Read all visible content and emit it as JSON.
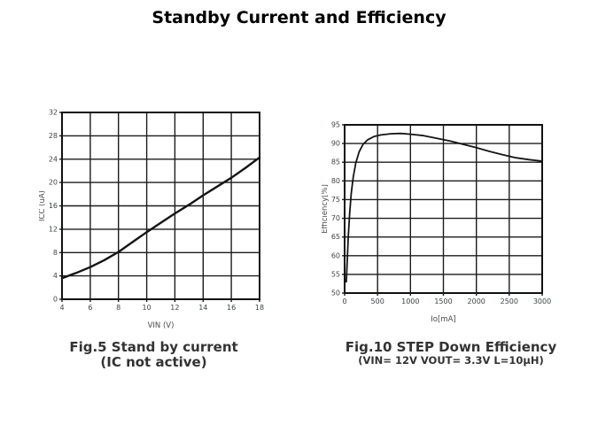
{
  "page_title": "Standby Current and Efficiency",
  "figures": [
    {
      "caption_line1": "Fig.5 Stand by current",
      "caption_line2": "(IC not active)"
    },
    {
      "caption_line1": "Fig.10 STEP Down Efficiency",
      "caption_line2": "(VIN= 12V VOUT= 3.3V L=10µH)"
    }
  ],
  "chart_data": [
    {
      "type": "line",
      "title": "Fig.5 Stand by current (IC not active)",
      "xlabel": "VIN (V)",
      "ylabel": "ICC (uA)",
      "xlim": [
        4,
        18
      ],
      "ylim": [
        0,
        32
      ],
      "x_ticks": [
        4,
        6,
        8,
        10,
        12,
        14,
        16,
        18
      ],
      "y_ticks": [
        0,
        4,
        8,
        12,
        16,
        20,
        24,
        28,
        32
      ],
      "grid": true,
      "legend": "none",
      "series": [
        {
          "name": "ICC standby current",
          "points": [
            [
              4,
              3.6
            ],
            [
              5,
              4.5
            ],
            [
              6,
              5.5
            ],
            [
              7,
              6.7
            ],
            [
              8,
              8.1
            ],
            [
              9,
              9.8
            ],
            [
              10,
              11.5
            ],
            [
              11,
              13.1
            ],
            [
              12,
              14.7
            ],
            [
              13,
              16.2
            ],
            [
              14,
              17.8
            ],
            [
              15,
              19.3
            ],
            [
              16,
              20.8
            ],
            [
              17,
              22.5
            ],
            [
              18,
              24.3
            ]
          ]
        }
      ]
    },
    {
      "type": "line",
      "title": "Fig.10 STEP Down Efficiency (VIN= 12V VOUT= 3.3V L=10µH)",
      "xlabel": "Io[mA]",
      "ylabel": "Efficiency[%]",
      "xlim": [
        0,
        3000
      ],
      "ylim": [
        50,
        95
      ],
      "x_ticks": [
        0,
        500,
        1000,
        1500,
        2000,
        2500,
        3000
      ],
      "y_ticks": [
        50,
        55,
        60,
        65,
        70,
        75,
        80,
        85,
        90,
        95
      ],
      "grid": true,
      "legend": "none",
      "series": [
        {
          "name": "Efficiency",
          "points": [
            [
              25,
              53
            ],
            [
              40,
              59
            ],
            [
              55,
              65
            ],
            [
              75,
              71
            ],
            [
              100,
              76.5
            ],
            [
              130,
              81
            ],
            [
              170,
              84.8
            ],
            [
              220,
              87.8
            ],
            [
              280,
              89.8
            ],
            [
              350,
              91
            ],
            [
              450,
              91.9
            ],
            [
              550,
              92.3
            ],
            [
              700,
              92.6
            ],
            [
              850,
              92.7
            ],
            [
              1000,
              92.5
            ],
            [
              1200,
              92.1
            ],
            [
              1400,
              91.4
            ],
            [
              1600,
              90.7
            ],
            [
              1800,
              89.8
            ],
            [
              2000,
              88.9
            ],
            [
              2200,
              87.9
            ],
            [
              2400,
              87
            ],
            [
              2600,
              86.2
            ],
            [
              2800,
              85.7
            ],
            [
              3000,
              85.3
            ]
          ]
        }
      ]
    }
  ]
}
